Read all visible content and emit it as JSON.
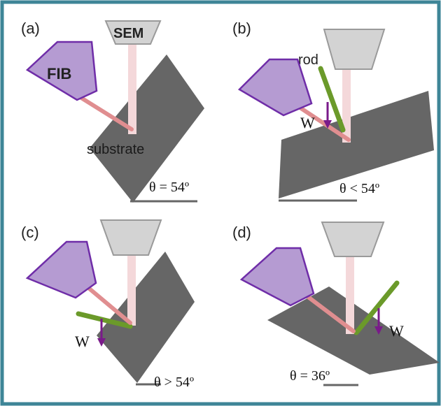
{
  "panels": [
    {
      "id": "a",
      "label": "(a)",
      "theta_text": "θ = 54º",
      "sem_label": "SEM",
      "fib_label": "FIB",
      "substrate_label": "substrate"
    },
    {
      "id": "b",
      "label": "(b)",
      "theta_text": "θ < 54º",
      "rod_label": "rod",
      "weight_label": "W"
    },
    {
      "id": "c",
      "label": "(c)",
      "theta_text": "θ > 54º",
      "weight_label": "W"
    },
    {
      "id": "d",
      "label": "(d)",
      "theta_text": "θ = 36º",
      "weight_label": "W"
    }
  ],
  "colors": {
    "frame": "#3e8597",
    "substrate": "#666666",
    "sem_column": "#d3d3d3",
    "sem_beam": "#f4d8da",
    "fib_body": "#b59bd2",
    "fib_outline": "#6f2da8",
    "fib_beam": "#e08e90",
    "rod": "#6b9a2a",
    "weight_arrow": "#7a1a8a"
  }
}
